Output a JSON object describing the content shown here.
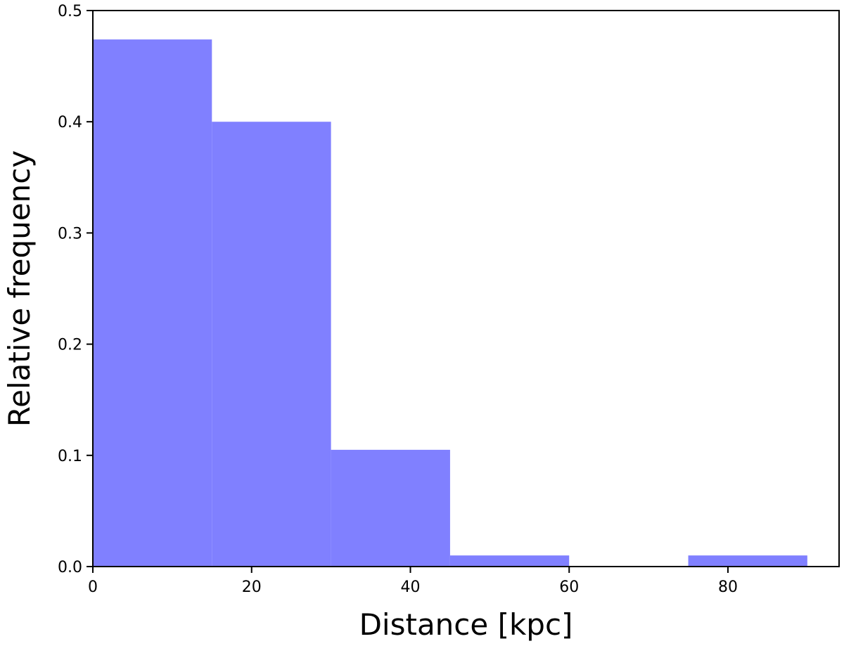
{
  "chart_data": {
    "type": "bar",
    "title": "",
    "xlabel": "Distance [kpc]",
    "ylabel": "Relative frequency",
    "xlim": [
      0,
      94
    ],
    "ylim": [
      0,
      0.5
    ],
    "xticks": [
      0,
      20,
      40,
      60,
      80
    ],
    "yticks": [
      0.0,
      0.1,
      0.2,
      0.3,
      0.4,
      0.5
    ],
    "xtick_labels": [
      "0",
      "20",
      "40",
      "60",
      "80"
    ],
    "ytick_labels": [
      "0.0",
      "0.1",
      "0.2",
      "0.3",
      "0.4",
      "0.5"
    ],
    "bins": [
      {
        "x0": 0,
        "x1": 15,
        "value": 0.474
      },
      {
        "x0": 15,
        "x1": 30,
        "value": 0.4
      },
      {
        "x0": 30,
        "x1": 45,
        "value": 0.105
      },
      {
        "x0": 45,
        "x1": 60,
        "value": 0.01
      },
      {
        "x0": 60,
        "x1": 75,
        "value": 0.0
      },
      {
        "x0": 75,
        "x1": 90,
        "value": 0.01
      }
    ],
    "bar_color": "#8080ff",
    "grid": false,
    "legend": false
  }
}
